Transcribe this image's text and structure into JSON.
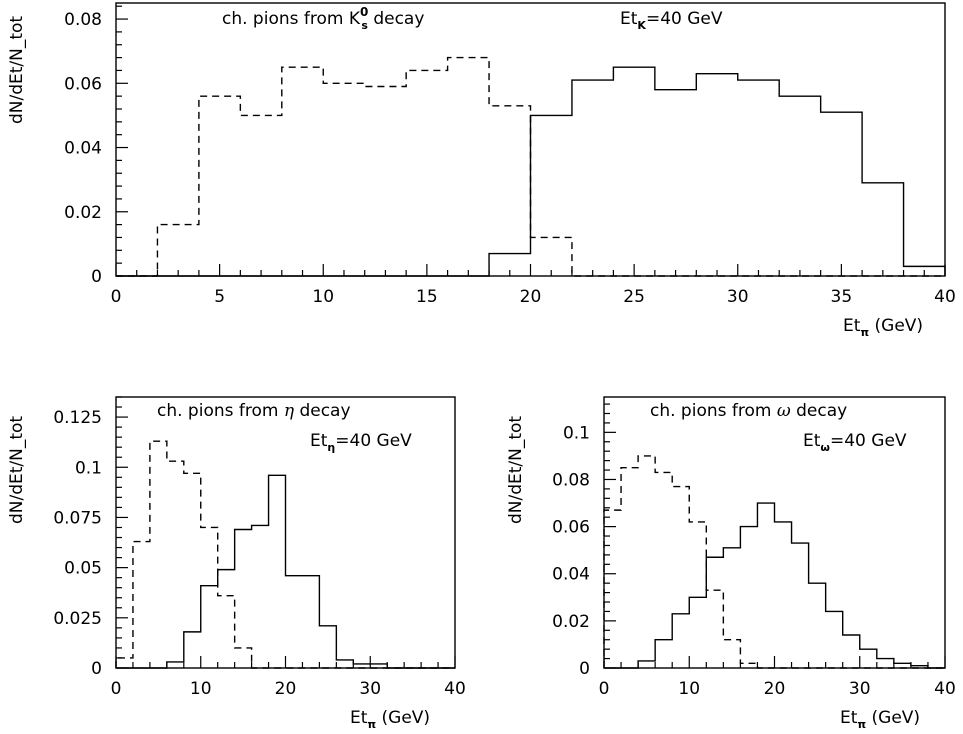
{
  "chart_data": [
    {
      "type": "step-histogram",
      "annotations": {
        "decay_label": {
          "prefix": "ch. pions from K",
          "sup": "0",
          "sub": "s",
          "suffix": " decay"
        },
        "energy_label": {
          "base": "Et",
          "sub": "K",
          "suffix": "=40 GeV"
        }
      },
      "xlabel": {
        "base": "Et",
        "sub": "π",
        "suffix": " (GeV)"
      },
      "ylabel": "dN/dEt/N_tot",
      "xlim": [
        0,
        40
      ],
      "ylim": [
        0,
        0.085
      ],
      "xticks": [
        0,
        5,
        10,
        15,
        20,
        25,
        30,
        35,
        40
      ],
      "yticks": [
        0,
        0.02,
        0.04,
        0.06,
        0.08
      ],
      "ytick_labels": [
        "0",
        "0.02",
        "0.04",
        "0.06",
        "0.08"
      ],
      "bin_edges": [
        0,
        2,
        4,
        6,
        8,
        10,
        12,
        14,
        16,
        18,
        20,
        22,
        24,
        26,
        28,
        30,
        32,
        34,
        36,
        38,
        40
      ],
      "series": [
        {
          "style": "dashed",
          "values": [
            0,
            0.016,
            0.056,
            0.05,
            0.065,
            0.06,
            0.059,
            0.064,
            0.068,
            0.053,
            0.012,
            0,
            0,
            0,
            0,
            0,
            0,
            0,
            0,
            0
          ]
        },
        {
          "style": "solid",
          "values": [
            0,
            0,
            0,
            0,
            0,
            0,
            0,
            0,
            0,
            0.007,
            0.05,
            0.061,
            0.065,
            0.058,
            0.063,
            0.061,
            0.056,
            0.051,
            0.029,
            0.003
          ]
        }
      ]
    },
    {
      "type": "step-histogram",
      "annotations": {
        "decay_label": {
          "prefix": "ch. pions from ",
          "greek": "η",
          "suffix": " decay"
        },
        "energy_label": {
          "base": "Et",
          "sub": "η",
          "suffix": "=40 GeV"
        }
      },
      "xlabel": {
        "base": "Et",
        "sub": "π",
        "suffix": " (GeV)"
      },
      "ylabel": "dN/dEt/N_tot",
      "xlim": [
        0,
        40
      ],
      "ylim": [
        0,
        0.135
      ],
      "xticks": [
        0,
        10,
        20,
        30,
        40
      ],
      "yticks": [
        0,
        0.025,
        0.05,
        0.075,
        0.1,
        0.125
      ],
      "ytick_labels": [
        "0",
        "0.025",
        "0.05",
        "0.075",
        "0.1",
        "0.125"
      ],
      "bin_edges": [
        0,
        2,
        4,
        6,
        8,
        10,
        12,
        14,
        16,
        18,
        20,
        22,
        24,
        26,
        28,
        30,
        32,
        34,
        36,
        38,
        40
      ],
      "series": [
        {
          "style": "dashed",
          "values": [
            0.005,
            0.063,
            0.113,
            0.103,
            0.097,
            0.07,
            0.036,
            0.01,
            0,
            0,
            0,
            0,
            0,
            0,
            0,
            0,
            0,
            0,
            0,
            0
          ]
        },
        {
          "style": "solid",
          "values": [
            0,
            0,
            0,
            0.003,
            0.018,
            0.041,
            0.049,
            0.069,
            0.071,
            0.096,
            0.046,
            0.046,
            0.021,
            0.004,
            0.002,
            0.002,
            0,
            0,
            0,
            0
          ]
        }
      ]
    },
    {
      "type": "step-histogram",
      "annotations": {
        "decay_label": {
          "prefix": "ch. pions from ",
          "greek": "ω",
          "suffix": " decay"
        },
        "energy_label": {
          "base": "Et",
          "sub": "ω",
          "suffix": "=40 GeV"
        }
      },
      "xlabel": {
        "base": "Et",
        "sub": "π",
        "suffix": " (GeV)"
      },
      "ylabel": "dN/dEt/N_tot",
      "xlim": [
        0,
        40
      ],
      "ylim": [
        0,
        0.115
      ],
      "xticks": [
        0,
        10,
        20,
        30,
        40
      ],
      "yticks": [
        0,
        0.02,
        0.04,
        0.06,
        0.08,
        0.1
      ],
      "ytick_labels": [
        "0",
        "0.02",
        "0.04",
        "0.06",
        "0.08",
        "0.1"
      ],
      "bin_edges": [
        0,
        2,
        4,
        6,
        8,
        10,
        12,
        14,
        16,
        18,
        20,
        22,
        24,
        26,
        28,
        30,
        32,
        34,
        36,
        38,
        40
      ],
      "series": [
        {
          "style": "dashed",
          "values": [
            0.067,
            0.085,
            0.09,
            0.083,
            0.077,
            0.062,
            0.033,
            0.012,
            0.002,
            0,
            0,
            0,
            0,
            0,
            0,
            0,
            0,
            0,
            0,
            0
          ]
        },
        {
          "style": "solid",
          "values": [
            0,
            0,
            0.003,
            0.012,
            0.023,
            0.03,
            0.047,
            0.051,
            0.06,
            0.07,
            0.062,
            0.053,
            0.036,
            0.024,
            0.014,
            0.008,
            0.004,
            0.002,
            0.001,
            0
          ]
        }
      ]
    }
  ]
}
